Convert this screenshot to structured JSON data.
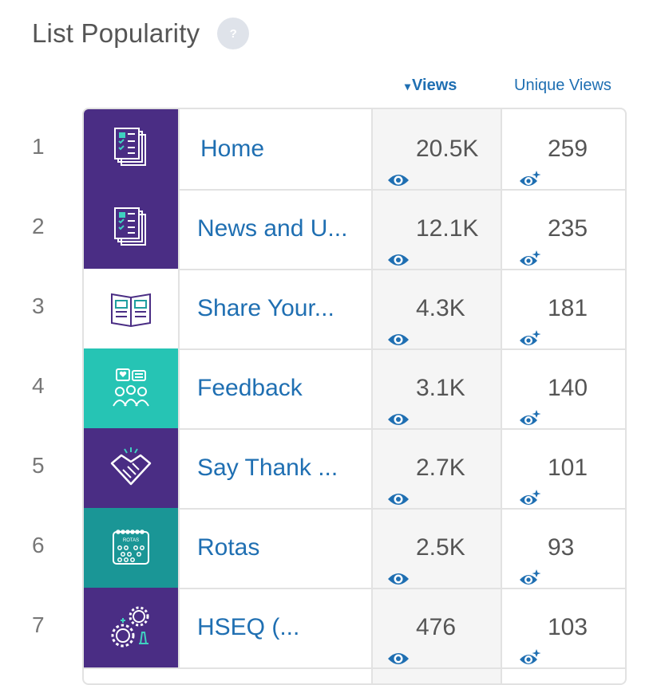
{
  "header": {
    "title": "List Popularity",
    "help_label": "?"
  },
  "columns": {
    "views": "Views",
    "unique_views": "Unique Views",
    "sort_indicator": "▾"
  },
  "colors": {
    "purple": "#4a2d84",
    "teal_light": "#26c4b4",
    "teal_dark": "#1a9696",
    "link": "#1f6fb2"
  },
  "rows": [
    {
      "rank": "1",
      "name": "Home",
      "views": "20.5K",
      "unique": "259",
      "icon": "document-checklist-icon",
      "bg": "purple"
    },
    {
      "rank": "2",
      "name": "News and U...",
      "views": "12.1K",
      "unique": "235",
      "icon": "document-checklist-icon",
      "bg": "purple"
    },
    {
      "rank": "3",
      "name": "Share Your...",
      "views": "4.3K",
      "unique": "181",
      "icon": "open-book-icon",
      "bg": "white"
    },
    {
      "rank": "4",
      "name": "Feedback",
      "views": "3.1K",
      "unique": "140",
      "icon": "people-chat-icon",
      "bg": "teal_light"
    },
    {
      "rank": "5",
      "name": "Say Thank ...",
      "views": "2.7K",
      "unique": "101",
      "icon": "handshake-icon",
      "bg": "purple"
    },
    {
      "rank": "6",
      "name": "Rotas",
      "views": "2.5K",
      "unique": "93",
      "icon": "calendar-icon",
      "bg": "teal_dark",
      "icon_text": "ROTAS"
    },
    {
      "rank": "7",
      "name": "HSEQ (...",
      "views": "476",
      "unique": "103",
      "icon": "gears-icon",
      "bg": "purple"
    }
  ]
}
